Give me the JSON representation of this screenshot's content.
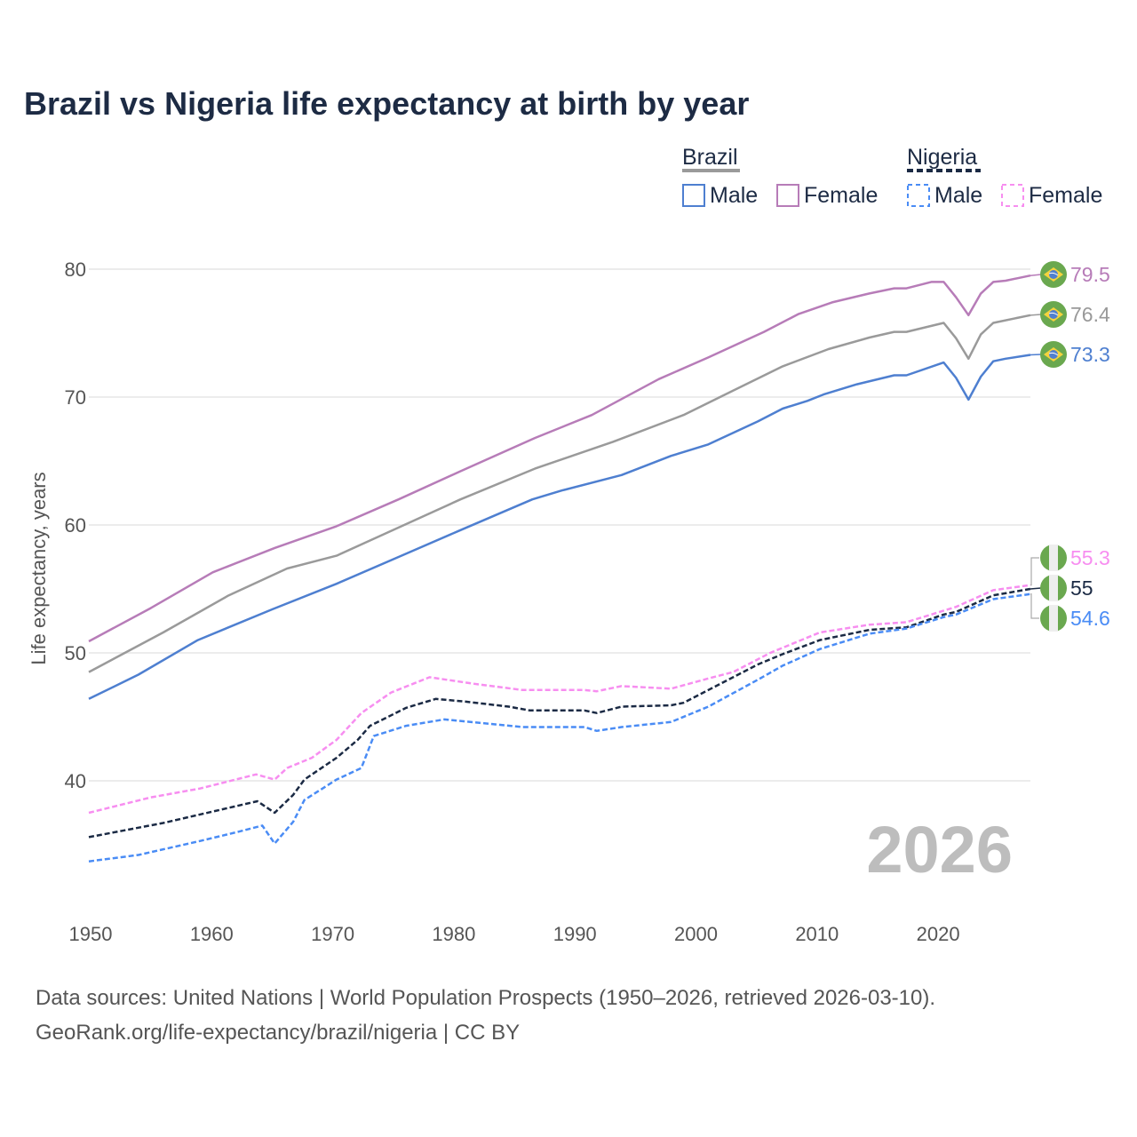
{
  "chart_data": {
    "type": "line",
    "title": "Brazil vs Nigeria life expectancy at birth by year",
    "xlabel": "",
    "ylabel": "Life expectancy, years",
    "xlim": [
      1950,
      2026
    ],
    "ylim": [
      30.3,
      80.5
    ],
    "x_ticks": [
      "1950",
      "1960",
      "1970",
      "1980",
      "1990",
      "2000",
      "2010",
      "2020"
    ],
    "y_ticks": [
      "40",
      "50",
      "60",
      "70",
      "80"
    ],
    "grid": true,
    "year_watermark": "2026",
    "legend": {
      "placement": "top-right",
      "groups": [
        {
          "name": "Brazil",
          "line_color": "#9a9a9a",
          "dashed": false,
          "items": [
            {
              "label": "Male",
              "color": "#4e7fd0"
            },
            {
              "label": "Female",
              "color": "#b77cb8"
            }
          ]
        },
        {
          "name": "Nigeria",
          "line_color": "#1b2a44",
          "dashed": true,
          "items": [
            {
              "label": "Male",
              "color": "#4a8cf5"
            },
            {
              "label": "Female",
              "color": "#f78ef0"
            }
          ]
        }
      ]
    },
    "series": [
      {
        "name": "Brazil Female",
        "color": "#b77cb8",
        "dashed": false,
        "end_label": "79.5",
        "flag": "brazil",
        "points": [
          [
            1950,
            50.9
          ],
          [
            1955,
            53.5
          ],
          [
            1960,
            56.3
          ],
          [
            1965,
            58.2
          ],
          [
            1970,
            59.9
          ],
          [
            1975,
            62.0
          ],
          [
            1980,
            64.2
          ],
          [
            1986,
            66.8
          ],
          [
            1990.6,
            68.6
          ],
          [
            1996,
            71.4
          ],
          [
            2000,
            73.1
          ],
          [
            2004.5,
            75.1
          ],
          [
            2007.3,
            76.5
          ],
          [
            2010,
            77.4
          ],
          [
            2013,
            78.1
          ],
          [
            2015,
            78.5
          ],
          [
            2016,
            78.5
          ],
          [
            2018,
            79.0
          ],
          [
            2019,
            79.0
          ],
          [
            2020,
            77.8
          ],
          [
            2021,
            76.4
          ],
          [
            2022,
            78.1
          ],
          [
            2023,
            79.0
          ],
          [
            2024,
            79.1
          ],
          [
            2026,
            79.5
          ]
        ]
      },
      {
        "name": "Brazil Total",
        "color": "#9a9a9a",
        "dashed": false,
        "end_label": "76.4",
        "flag": "brazil",
        "points": [
          [
            1950,
            48.5
          ],
          [
            1956,
            51.6
          ],
          [
            1961.3,
            54.5
          ],
          [
            1966,
            56.6
          ],
          [
            1970,
            57.6
          ],
          [
            1975,
            59.8
          ],
          [
            1980,
            62.0
          ],
          [
            1986,
            64.4
          ],
          [
            1992.3,
            66.5
          ],
          [
            1998,
            68.6
          ],
          [
            2002,
            70.5
          ],
          [
            2006,
            72.4
          ],
          [
            2009.7,
            73.75
          ],
          [
            2013,
            74.65
          ],
          [
            2015,
            75.1
          ],
          [
            2016,
            75.1
          ],
          [
            2019,
            75.8
          ],
          [
            2020,
            74.6
          ],
          [
            2021,
            73.0
          ],
          [
            2022,
            74.9
          ],
          [
            2023,
            75.8
          ],
          [
            2026,
            76.4
          ]
        ]
      },
      {
        "name": "Brazil Male",
        "color": "#4e7fd0",
        "dashed": false,
        "end_label": "73.3",
        "flag": "brazil",
        "points": [
          [
            1950,
            46.4
          ],
          [
            1954,
            48.3
          ],
          [
            1958.8,
            51.0
          ],
          [
            1964.8,
            53.4
          ],
          [
            1970,
            55.4
          ],
          [
            1975,
            57.5
          ],
          [
            1980,
            59.6
          ],
          [
            1985.8,
            62.0
          ],
          [
            1988.2,
            62.7
          ],
          [
            1993,
            63.9
          ],
          [
            1997,
            65.4
          ],
          [
            2000,
            66.3
          ],
          [
            2004,
            68.1
          ],
          [
            2006,
            69.1
          ],
          [
            2008,
            69.7
          ],
          [
            2009.3,
            70.2
          ],
          [
            2012,
            71.0
          ],
          [
            2015,
            71.7
          ],
          [
            2016,
            71.7
          ],
          [
            2019,
            72.7
          ],
          [
            2020,
            71.5
          ],
          [
            2021,
            69.8
          ],
          [
            2022,
            71.6
          ],
          [
            2023,
            72.8
          ],
          [
            2024,
            73.0
          ],
          [
            2026,
            73.3
          ]
        ]
      },
      {
        "name": "Nigeria Female",
        "color": "#f78ef0",
        "dashed": true,
        "end_label": "55.3",
        "flag": "nigeria",
        "points": [
          [
            1950,
            37.5
          ],
          [
            1955,
            38.7
          ],
          [
            1959,
            39.4
          ],
          [
            1963.5,
            40.5
          ],
          [
            1965,
            40.1
          ],
          [
            1966,
            41.0
          ],
          [
            1968,
            41.8
          ],
          [
            1970,
            43.2
          ],
          [
            1972,
            45.3
          ],
          [
            1974.4,
            46.9
          ],
          [
            1977.5,
            48.1
          ],
          [
            1981,
            47.6
          ],
          [
            1985,
            47.1
          ],
          [
            1990,
            47.1
          ],
          [
            1991,
            47.0
          ],
          [
            1993,
            47.4
          ],
          [
            1997,
            47.2
          ],
          [
            2000,
            48.0
          ],
          [
            2002,
            48.5
          ],
          [
            2005,
            50.0
          ],
          [
            2009,
            51.6
          ],
          [
            2013,
            52.2
          ],
          [
            2016,
            52.4
          ],
          [
            2020,
            53.6
          ],
          [
            2023,
            54.9
          ],
          [
            2026,
            55.3
          ]
        ]
      },
      {
        "name": "Nigeria Total",
        "color": "#1b2a44",
        "dashed": true,
        "end_label": "55",
        "flag": "nigeria",
        "points": [
          [
            1950,
            35.6
          ],
          [
            1956,
            36.7
          ],
          [
            1963.6,
            38.4
          ],
          [
            1965,
            37.5
          ],
          [
            1966.5,
            38.9
          ],
          [
            1967.4,
            40.1
          ],
          [
            1970,
            41.8
          ],
          [
            1971.7,
            43.2
          ],
          [
            1972.7,
            44.3
          ],
          [
            1975.6,
            45.7
          ],
          [
            1978,
            46.4
          ],
          [
            1980.3,
            46.2
          ],
          [
            1983.9,
            45.8
          ],
          [
            1985.6,
            45.5
          ],
          [
            1990,
            45.5
          ],
          [
            1991,
            45.3
          ],
          [
            1993,
            45.8
          ],
          [
            1997,
            45.9
          ],
          [
            1998,
            46.1
          ],
          [
            2000,
            47.1
          ],
          [
            2004,
            49.1
          ],
          [
            2006,
            49.9
          ],
          [
            2009,
            51.0
          ],
          [
            2013,
            51.8
          ],
          [
            2016,
            52.0
          ],
          [
            2019,
            53.0
          ],
          [
            2020,
            53.2
          ],
          [
            2023,
            54.5
          ],
          [
            2026,
            55.0
          ]
        ]
      },
      {
        "name": "Nigeria Male",
        "color": "#4a8cf5",
        "dashed": true,
        "end_label": "54.6",
        "flag": "nigeria",
        "points": [
          [
            1950,
            33.7
          ],
          [
            1954,
            34.2
          ],
          [
            1959,
            35.3
          ],
          [
            1962,
            36.0
          ],
          [
            1964,
            36.5
          ],
          [
            1965,
            35.1
          ],
          [
            1966.5,
            36.8
          ],
          [
            1967.4,
            38.5
          ],
          [
            1970,
            40.1
          ],
          [
            1972,
            41.0
          ],
          [
            1973,
            43.5
          ],
          [
            1975.6,
            44.3
          ],
          [
            1978.7,
            44.8
          ],
          [
            1985,
            44.2
          ],
          [
            1990,
            44.2
          ],
          [
            1991,
            43.9
          ],
          [
            1993,
            44.2
          ],
          [
            1997,
            44.6
          ],
          [
            2000,
            45.8
          ],
          [
            2004,
            47.9
          ],
          [
            2006,
            49.0
          ],
          [
            2009,
            50.3
          ],
          [
            2013,
            51.5
          ],
          [
            2016,
            51.9
          ],
          [
            2019,
            52.8
          ],
          [
            2020,
            53.0
          ],
          [
            2023,
            54.2
          ],
          [
            2026,
            54.6
          ]
        ]
      }
    ]
  },
  "footer": {
    "line1": "Data sources: United Nations | World Population Prospects (1950–2026, retrieved 2026-03-10).",
    "line2": "GeoRank.org/life-expectancy/brazil/nigeria | CC BY"
  }
}
